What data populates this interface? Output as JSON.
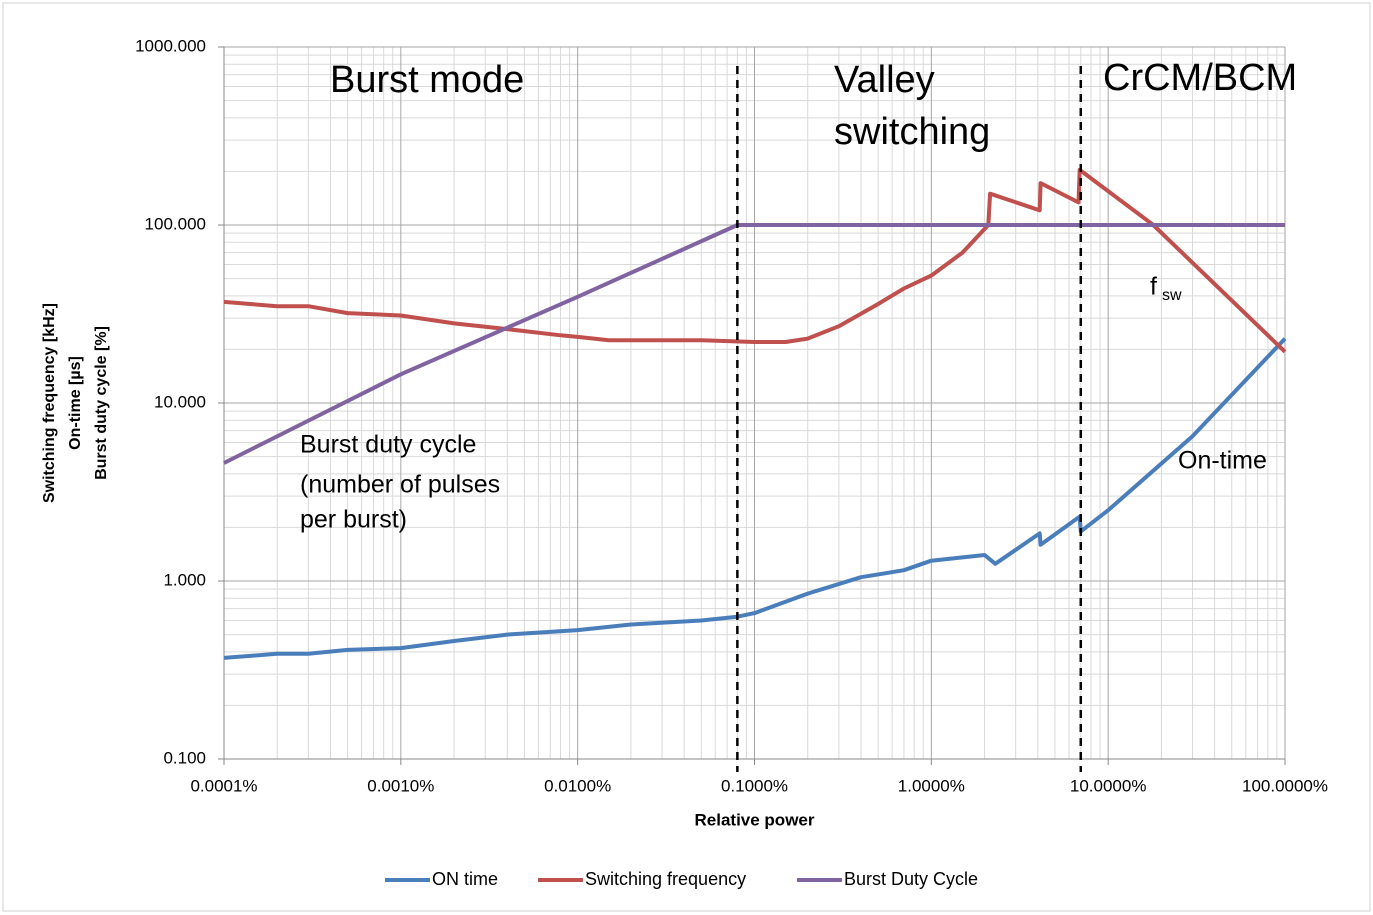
{
  "chart_data": {
    "type": "line",
    "x_label": "Relative power",
    "y_label": [
      "Switching frequency [kHz]",
      "On-time [µs]",
      "Burst duty cycle [%]"
    ],
    "xlog": true,
    "ylog": true,
    "grid": true,
    "minor_grid": true,
    "legend": "bottom",
    "xlim": [
      0.0001,
      100
    ],
    "ylim": [
      0.1,
      1000
    ],
    "xticks": [
      {
        "value": 0.0001,
        "label": "0.0001%"
      },
      {
        "value": 0.001,
        "label": "0.0010%"
      },
      {
        "value": 0.01,
        "label": "0.0100%"
      },
      {
        "value": 0.1,
        "label": "0.1000%"
      },
      {
        "value": 1,
        "label": "1.0000%"
      },
      {
        "value": 10,
        "label": "10.0000%"
      },
      {
        "value": 100,
        "label": "100.0000%"
      }
    ],
    "yticks": [
      {
        "value": 0.1,
        "label": "0.100"
      },
      {
        "value": 1,
        "label": "1.000"
      },
      {
        "value": 10,
        "label": "10.000"
      },
      {
        "value": 100,
        "label": "100.000"
      },
      {
        "value": 1000,
        "label": "1000.000"
      }
    ],
    "reference_lines": [
      0.08,
      7
    ],
    "annotations": [
      "Burst mode",
      "Valley",
      "switching",
      "CrCM/BCM",
      "Burst duty cycle",
      "(number of pulses",
      "per burst)",
      "f",
      "sw",
      "On-time"
    ],
    "series": [
      {
        "name": "ON time",
        "color": "#4a7ebb",
        "x": [
          0.0001,
          0.0002,
          0.0003,
          0.0005,
          0.001,
          0.002,
          0.004,
          0.01,
          0.02,
          0.05,
          0.08,
          0.1,
          0.2,
          0.4,
          0.7,
          1.0,
          2.0,
          2.3,
          4.1,
          4.15,
          6.9,
          7.0,
          10,
          30,
          100
        ],
        "values": [
          0.37,
          0.39,
          0.39,
          0.41,
          0.42,
          0.46,
          0.5,
          0.53,
          0.57,
          0.6,
          0.63,
          0.66,
          0.85,
          1.05,
          1.15,
          1.3,
          1.4,
          1.25,
          1.85,
          1.6,
          2.3,
          1.9,
          2.5,
          6.5,
          23
        ]
      },
      {
        "name": "Switching frequency",
        "color": "#c0504d",
        "x": [
          0.0001,
          0.0002,
          0.0003,
          0.0005,
          0.001,
          0.002,
          0.004,
          0.008,
          0.01,
          0.015,
          0.05,
          0.1,
          0.15,
          0.2,
          0.3,
          0.5,
          0.7,
          1.0,
          1.5,
          2.1,
          2.15,
          4.1,
          4.15,
          6.8,
          6.9,
          18,
          100
        ],
        "values": [
          37,
          35,
          35,
          32,
          31,
          28,
          26,
          24,
          23.5,
          22.5,
          22.5,
          22,
          22,
          23,
          27,
          36,
          44,
          52,
          70,
          100,
          150,
          121,
          172,
          134,
          204,
          100,
          19.4
        ]
      },
      {
        "name": "Burst Duty Cycle",
        "color": "#8064a2",
        "x": [
          0.0001,
          0.001,
          0.01,
          0.08,
          100
        ],
        "values": [
          4.6,
          14.5,
          39.5,
          100,
          100
        ]
      }
    ]
  }
}
